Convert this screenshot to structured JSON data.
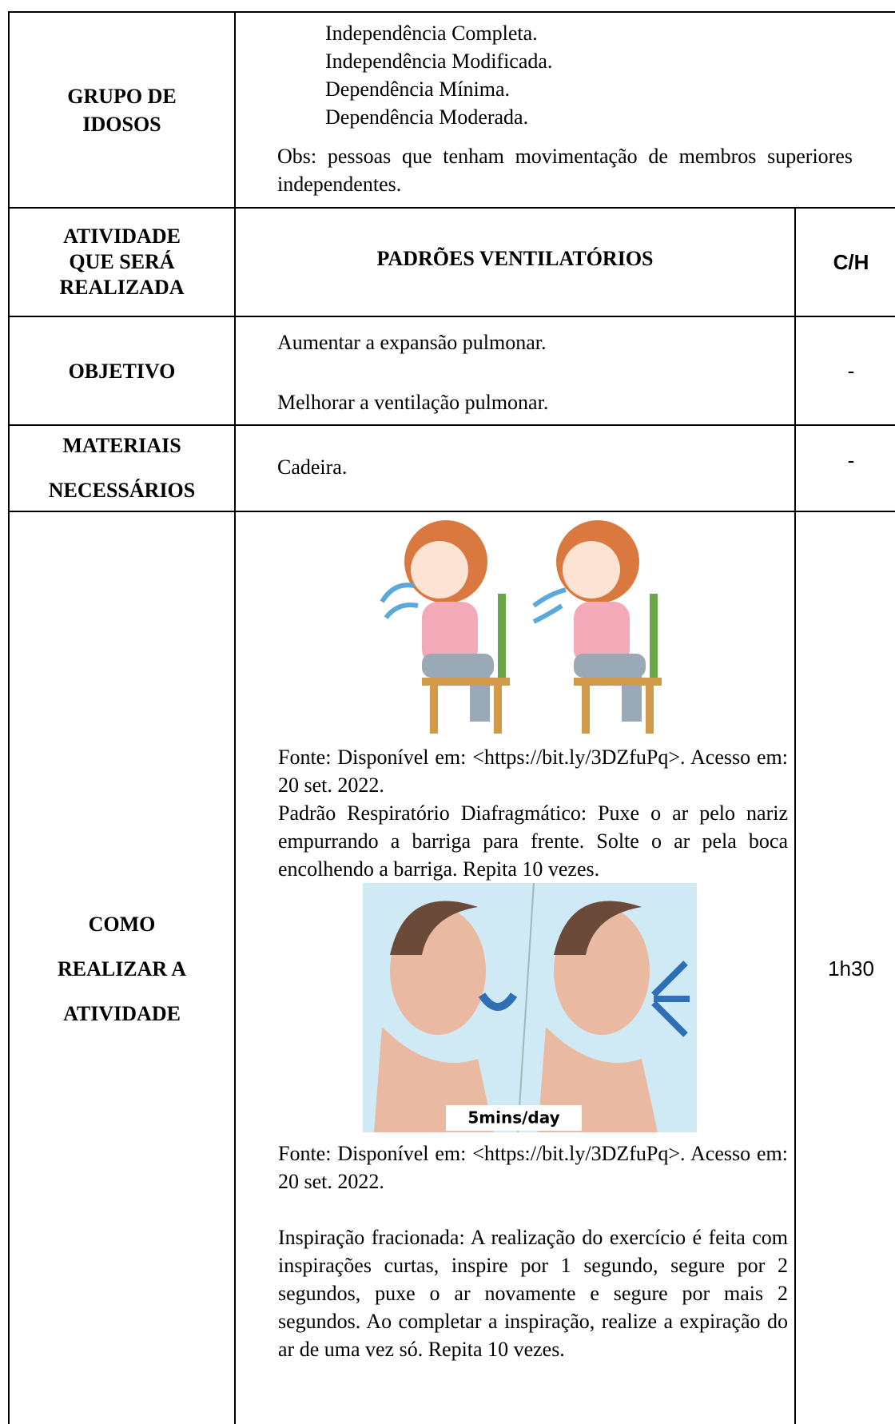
{
  "table": {
    "rows": [
      {
        "label": [
          "GRUPO DE",
          "IDOSOS"
        ],
        "items": [
          "Independência Completa.",
          "Independência Modificada.",
          "Dependência Mínima.",
          "Dependência Moderada."
        ],
        "note": "Obs: pessoas que tenham movimentação de membros superiores independentes."
      },
      {
        "label": [
          "ATIVIDADE",
          "QUE SERÁ",
          "REALIZADA"
        ],
        "content": "PADRÕES VENTILATÓRIOS",
        "ch": "C/H"
      },
      {
        "label": [
          "OBJETIVO"
        ],
        "items": [
          "Aumentar a expansão pulmonar.",
          "Melhorar a ventilação pulmonar."
        ],
        "ch": "-"
      },
      {
        "label": [
          "MATERIAIS",
          "NECESSÁRIOS"
        ],
        "content": "Cadeira.",
        "ch": "-"
      },
      {
        "label": [
          "COMO",
          "REALIZAR A",
          "ATIVIDADE"
        ],
        "source_1": "Fonte: Disponível em: <https://bit.ly/3DZfuPq>. Acesso em: 20 set. 2022.",
        "text_1": "Padrão Respiratório Diafragmático: Puxe o ar pelo nariz empurrando a barriga para frente. Solte o ar pela boca encolhendo a barriga. Repita 10 vezes.",
        "image_caption": "5mins/day",
        "source_2": "Fonte: Disponível em: <https://bit.ly/3DZfuPq>. Acesso em: 20 set. 2022.",
        "text_2": "Inspiração fracionada: A realização do exercício é feita com inspirações curtas, inspire por 1 segundo, segure por 2 segundos, puxe o ar novamente e segure por mais 2 segundos. Ao completar a inspiração, realize a expiração do ar de uma vez só. Repita 10 vezes.",
        "ch": "1h30"
      }
    ]
  }
}
